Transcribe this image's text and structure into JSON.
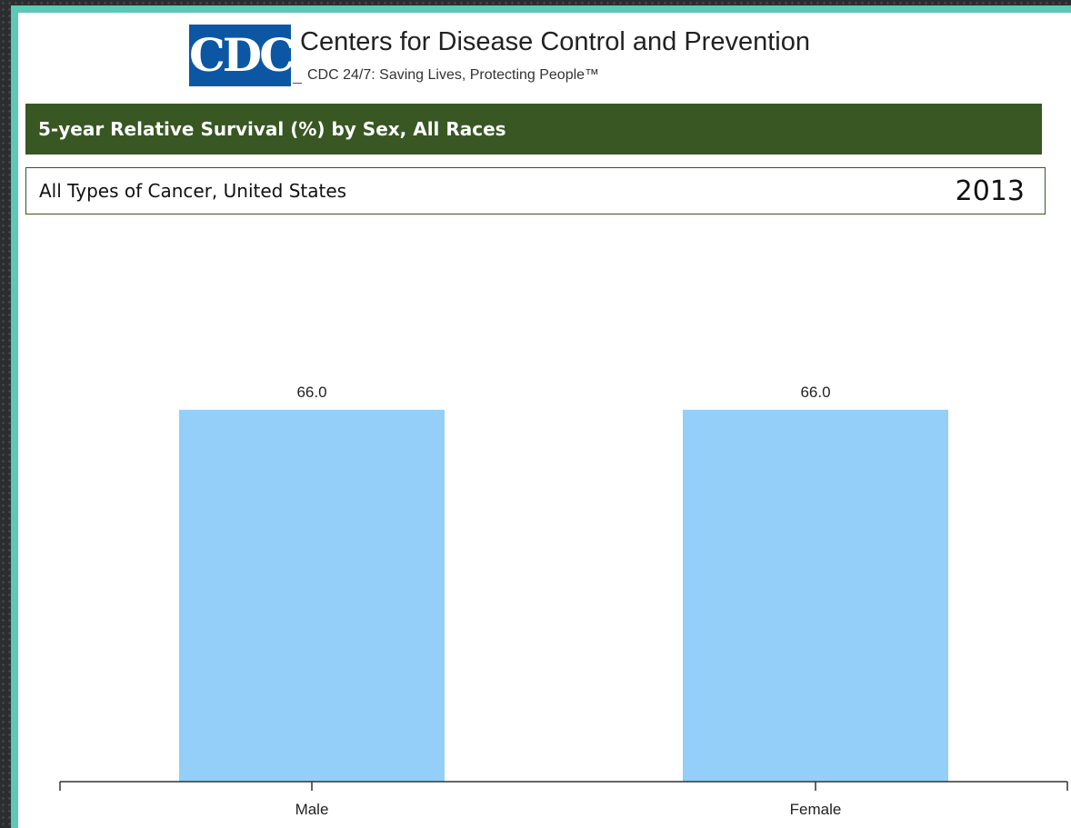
{
  "header": {
    "logo_text": "CDC",
    "org_name": "Centers for Disease Control and Prevention",
    "tagline": "CDC 24/7: Saving Lives, Protecting People™"
  },
  "title_bar": {
    "text": "5-year Relative Survival (%) by Sex, All Races"
  },
  "subtitle_bar": {
    "text": "All Types of Cancer, United States",
    "year": "2013"
  },
  "colors": {
    "bar": "#93cff8",
    "title_bg": "#385723",
    "logo_bg": "#0b57a4",
    "frame": "#5cc9b6"
  },
  "chart_data": {
    "type": "bar",
    "title": "5-year Relative Survival (%) by Sex, All Races",
    "subtitle": "All Types of Cancer, United States",
    "categories": [
      "Male",
      "Female"
    ],
    "values": [
      66.0,
      66.0
    ],
    "data_labels": [
      "66.0",
      "66.0"
    ],
    "ylim": [
      0,
      100
    ],
    "grid": false,
    "legend": "none"
  }
}
